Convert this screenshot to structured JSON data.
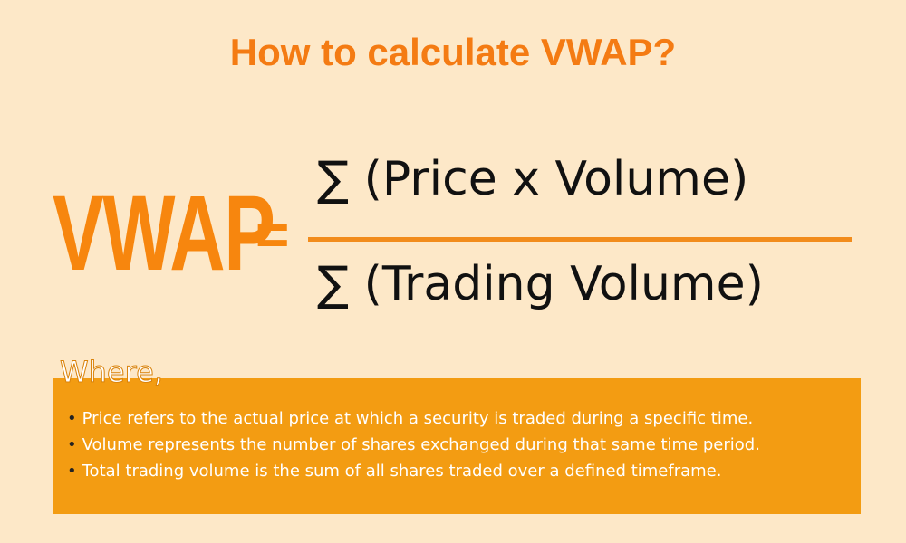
{
  "header": {
    "title": "How to calculate VWAP?"
  },
  "formula": {
    "lhs": "VWAP",
    "equals": "=",
    "numerator": "∑ (Price x Volume)",
    "denominator": "∑ (Trading Volume)"
  },
  "definitions": {
    "heading": "Where,",
    "items": [
      "Price refers to the actual price at which a security is traded during a specific time.",
      "Volume represents the number of shares exchanged during that same time period.",
      "Total trading volume is the sum of all shares traded over a defined timeframe."
    ]
  }
}
